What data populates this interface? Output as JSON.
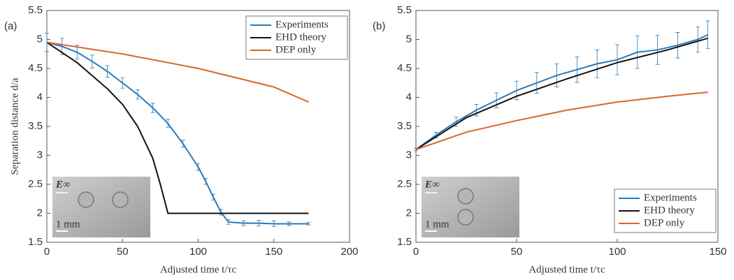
{
  "chart_data": [
    {
      "type": "line",
      "panel_label": "(a)",
      "xlabel": "Adjusted time t/τc",
      "ylabel": "Separation distance d/a",
      "xlim": [
        0,
        200
      ],
      "ylim": [
        1.5,
        5.5
      ],
      "xticks": [
        0,
        50,
        100,
        150,
        200
      ],
      "yticks": [
        1.5,
        2,
        2.5,
        3,
        3.5,
        4,
        4.5,
        5,
        5.5
      ],
      "legend": "upper right",
      "field_label": "E∞",
      "scale_label": "1 mm",
      "series": [
        {
          "name": "Experiments",
          "color": "#2a7ab8",
          "x": [
            0,
            10,
            20,
            30,
            40,
            50,
            60,
            70,
            80,
            90,
            100,
            105,
            110,
            115,
            120,
            130,
            140,
            150,
            160,
            173
          ],
          "values": [
            4.95,
            4.88,
            4.78,
            4.62,
            4.45,
            4.25,
            4.05,
            3.82,
            3.55,
            3.2,
            2.8,
            2.55,
            2.28,
            2.02,
            1.85,
            1.83,
            1.83,
            1.82,
            1.82,
            1.82
          ],
          "errors": [
            0.16,
            0.14,
            0.12,
            0.11,
            0.1,
            0.09,
            0.08,
            0.08,
            0.07,
            0.06,
            0.06,
            0.05,
            0.05,
            0.05,
            0.04,
            0.04,
            0.05,
            0.05,
            0.03,
            0.02
          ]
        },
        {
          "name": "EHD theory",
          "color": "#111111",
          "x": [
            0,
            20,
            40,
            50,
            60,
            70,
            75,
            80,
            100,
            173
          ],
          "values": [
            4.95,
            4.6,
            4.15,
            3.88,
            3.5,
            2.95,
            2.5,
            2.0,
            2.0,
            2.0
          ]
        },
        {
          "name": "DEP only",
          "color": "#d9652b",
          "x": [
            0,
            50,
            100,
            150,
            173
          ],
          "values": [
            4.95,
            4.75,
            4.5,
            4.18,
            3.92
          ]
        }
      ]
    },
    {
      "type": "line",
      "panel_label": "(b)",
      "xlabel": "Adjusted time t/τc",
      "xlim": [
        0,
        150
      ],
      "ylim": [
        1.5,
        5.5
      ],
      "xticks": [
        0,
        50,
        100,
        150
      ],
      "yticks": [
        1.5,
        2,
        2.5,
        3,
        3.5,
        4,
        4.5,
        5,
        5.5
      ],
      "legend": "lower right",
      "field_label": "E∞",
      "scale_label": "1 mm",
      "series": [
        {
          "name": "Experiments",
          "color": "#2a7ab8",
          "x": [
            0,
            10,
            20,
            30,
            40,
            50,
            60,
            70,
            80,
            90,
            100,
            110,
            120,
            130,
            140,
            145
          ],
          "values": [
            3.1,
            3.35,
            3.58,
            3.78,
            3.95,
            4.12,
            4.25,
            4.38,
            4.48,
            4.58,
            4.65,
            4.78,
            4.82,
            4.9,
            5.0,
            5.08
          ],
          "errors": [
            0.02,
            0.05,
            0.08,
            0.1,
            0.13,
            0.16,
            0.18,
            0.2,
            0.22,
            0.24,
            0.26,
            0.28,
            0.25,
            0.22,
            0.22,
            0.24
          ]
        },
        {
          "name": "EHD theory",
          "color": "#111111",
          "x": [
            0,
            25,
            50,
            75,
            100,
            125,
            145
          ],
          "values": [
            3.1,
            3.65,
            4.02,
            4.32,
            4.6,
            4.82,
            5.02
          ]
        },
        {
          "name": "DEP only",
          "color": "#d9652b",
          "x": [
            0,
            25,
            50,
            75,
            100,
            125,
            145
          ],
          "values": [
            3.1,
            3.4,
            3.6,
            3.78,
            3.92,
            4.02,
            4.09
          ]
        }
      ]
    }
  ]
}
